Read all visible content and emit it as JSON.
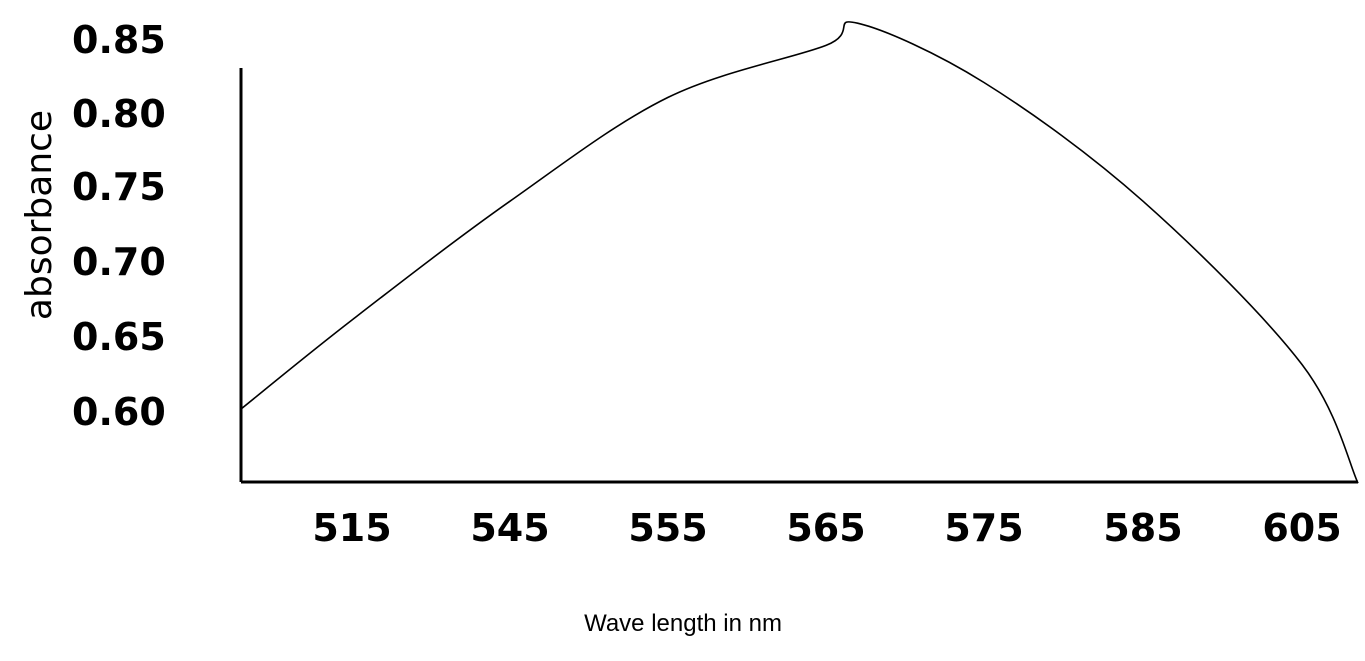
{
  "chart_data": {
    "type": "line",
    "title": "",
    "xlabel": "Wave length in nm",
    "ylabel": "absorbance",
    "x_tick_labels": [
      "515",
      "545",
      "555",
      "565",
      "575",
      "585",
      "605"
    ],
    "y_tick_labels": [
      "0.85",
      "0.80",
      "0.75",
      "0.70",
      "0.65",
      "0.60"
    ],
    "ylim": [
      0.55,
      0.85
    ],
    "grid": false,
    "legend": "none",
    "line_color": "#000000",
    "series": [
      {
        "x": [
          510,
          515,
          545,
          555,
          565,
          567,
          575,
          585,
          605,
          610
        ],
        "y": [
          0.6,
          0.66,
          0.74,
          0.81,
          0.845,
          0.86,
          0.82,
          0.74,
          0.63,
          0.55
        ]
      }
    ]
  }
}
